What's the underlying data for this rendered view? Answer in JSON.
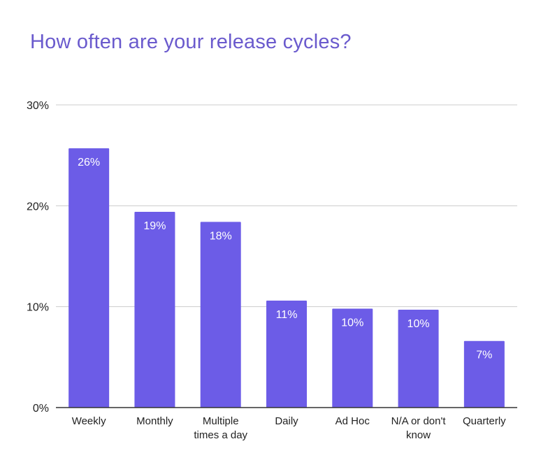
{
  "chart_data": {
    "type": "bar",
    "title": "How often are your release cycles?",
    "xlabel": "",
    "ylabel": "",
    "categories": [
      "Weekly",
      "Monthly",
      "Multiple times a day",
      "Daily",
      "Ad Hoc",
      "N/A or don't know",
      "Quarterly"
    ],
    "category_lines": [
      [
        "Weekly"
      ],
      [
        "Monthly"
      ],
      [
        "Multiple",
        "times a day"
      ],
      [
        "Daily"
      ],
      [
        "Ad Hoc"
      ],
      [
        "N/A or don't",
        "know"
      ],
      [
        "Quarterly"
      ]
    ],
    "values": [
      25.7,
      19.4,
      18.4,
      10.6,
      9.8,
      9.7,
      6.6
    ],
    "data_labels": [
      "26%",
      "19%",
      "18%",
      "11%",
      "10%",
      "10%",
      "7%"
    ],
    "ylim": [
      0,
      30
    ],
    "yticks": [
      0,
      10,
      20,
      30
    ],
    "ytick_labels": [
      "0%",
      "10%",
      "20%",
      "30%"
    ],
    "grid": true,
    "legend": "none",
    "colors": {
      "bar": "#6c5ce7",
      "title": "#6a5acd",
      "grid": "#cccccc",
      "axis": "#333333"
    }
  }
}
